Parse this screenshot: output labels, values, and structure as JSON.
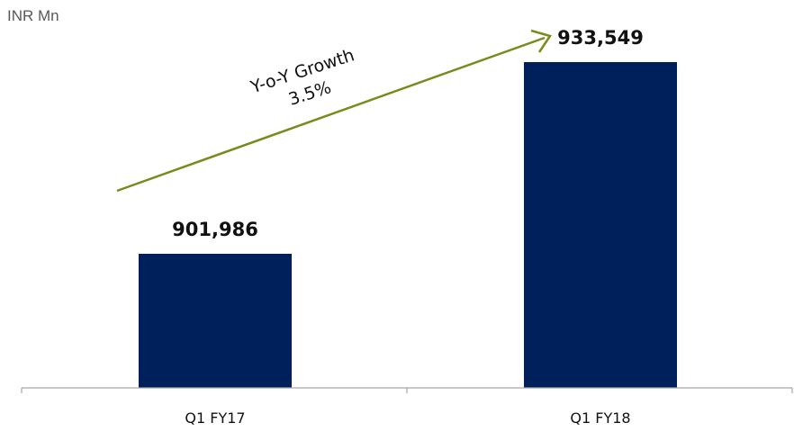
{
  "chart_data": {
    "type": "bar",
    "unit_label": "INR Mn",
    "categories": [
      "Q1 FY17",
      "Q1 FY18"
    ],
    "values": [
      901986,
      933549
    ],
    "data_labels": [
      "901,986",
      "933,549"
    ],
    "bar_color": "#00205b",
    "annotation": {
      "line1": "Y-o-Y Growth",
      "line2": "3.5%",
      "arrow_color": "#7a8a1e"
    },
    "axis_color": "#a6a6a6"
  }
}
